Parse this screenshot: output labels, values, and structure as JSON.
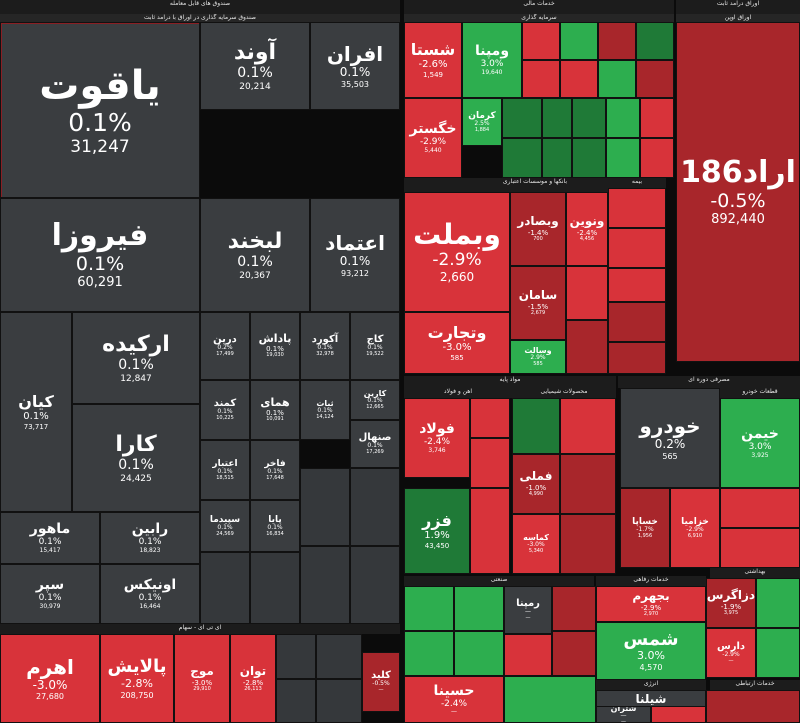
{
  "colors": {
    "neutral": "#3a3d40",
    "neutral_dark": "#35383b",
    "red": "#d8333a",
    "red_dark": "#a8262b",
    "green": "#2dae4f",
    "green_dark": "#1f7a37",
    "highlight_red": "#8a1f24"
  },
  "chart_data": {
    "type": "treemap",
    "sections": [
      {
        "key": "etf_trade",
        "label": "صندوق های قابل معامله",
        "sub": "صندوق سرمایه گذاری در اوراق با درآمد ثابت"
      },
      {
        "key": "fin",
        "label": "خدمات مالی",
        "sub": "سرمایه گذاری"
      },
      {
        "key": "fixed",
        "label": "اوراق درآمد ثابت",
        "sub": "اوراق اوپن"
      },
      {
        "key": "banks",
        "label": "بانکها و موسسات اعتباری"
      },
      {
        "key": "insurance",
        "label": "بیمه"
      },
      {
        "key": "basic_metals",
        "label": "مواد پایه"
      },
      {
        "key": "metals",
        "label": "آهن و فولاد"
      },
      {
        "key": "chem",
        "label": "محصولات شیمیایی"
      },
      {
        "key": "auto",
        "label": "مصرفی دوره ای"
      },
      {
        "key": "food",
        "label": "قطعات خودرو"
      },
      {
        "key": "industrial",
        "label": "صنعتی"
      },
      {
        "key": "tech",
        "label": "ای تی ای - سهام"
      },
      {
        "key": "utilities",
        "label": "خدمات رفاهی"
      },
      {
        "key": "health",
        "label": "بهداشتی"
      },
      {
        "key": "energy",
        "label": "انرژی"
      },
      {
        "key": "telecom",
        "label": "خدمات ارتباطی"
      }
    ],
    "tiles": [
      {
        "name": "یاقوت",
        "change": "0.1%",
        "value": "31,247"
      },
      {
        "name": "آوند",
        "change": "0.1%",
        "value": "20,214"
      },
      {
        "name": "افران",
        "change": "0.1%",
        "value": "35,503"
      },
      {
        "name": "فیروزا",
        "change": "0.1%",
        "value": "60,291"
      },
      {
        "name": "لبخند",
        "change": "0.1%",
        "value": "20,367"
      },
      {
        "name": "اعتماد",
        "change": "0.1%",
        "value": "93,212"
      },
      {
        "name": "ارکیده",
        "change": "0.1%",
        "value": "12,847"
      },
      {
        "name": "کیان",
        "change": "0.1%",
        "value": "73,717"
      },
      {
        "name": "کارا",
        "change": "0.1%",
        "value": "24,425"
      },
      {
        "name": "درین",
        "change": "0.2%",
        "value": "17,499"
      },
      {
        "name": "پاداش",
        "change": "0.1%",
        "value": "19,030"
      },
      {
        "name": "آکورد",
        "change": "0.1%",
        "value": "32,978"
      },
      {
        "name": "کاج",
        "change": "0.1%",
        "value": "19,522"
      },
      {
        "name": "کارین",
        "change": "0.1%",
        "value": "12,665"
      },
      {
        "name": "ثبات",
        "change": "0.1%",
        "value": "14,124"
      },
      {
        "name": "کمند",
        "change": "0.1%",
        "value": "10,225"
      },
      {
        "name": "همای",
        "change": "0.1%",
        "value": "10,091"
      },
      {
        "name": "صنهال",
        "change": "0.1%",
        "value": "17,269"
      },
      {
        "name": "ماهور",
        "change": "0.1%",
        "value": "15,417"
      },
      {
        "name": "رابین",
        "change": "0.1%",
        "value": "18,823"
      },
      {
        "name": "اعتبار",
        "change": "0.1%",
        "value": "18,515"
      },
      {
        "name": "فاخر",
        "change": "0.1%",
        "value": "17,648"
      },
      {
        "name": "سپر",
        "change": "0.1%",
        "value": "30,979"
      },
      {
        "name": "اونیکس",
        "change": "0.1%",
        "value": "16,464"
      },
      {
        "name": "سپیدما",
        "change": "0.1%",
        "value": "24,569"
      },
      {
        "name": "پایا",
        "change": "0.1%",
        "value": "16,834"
      },
      {
        "name": "شستا",
        "change": "-2.6%",
        "value": "1,549"
      },
      {
        "name": "ومپنا",
        "change": "3.0%",
        "value": "19,640"
      },
      {
        "name": "خگستر",
        "change": "-2.9%",
        "value": "5,440"
      },
      {
        "name": "کرمان",
        "change": "2.5%",
        "value": "1,884"
      },
      {
        "name": "اراد186",
        "change": "-0.5%",
        "value": "892,440"
      },
      {
        "name": "وبملت",
        "change": "-2.9%",
        "value": "2,660"
      },
      {
        "name": "وبصادر",
        "change": "-1.4%",
        "value": "700"
      },
      {
        "name": "ونوین",
        "change": "-2.4%",
        "value": "4,456"
      },
      {
        "name": "سامان",
        "change": "-1.5%",
        "value": "2,679"
      },
      {
        "name": "وتجارت",
        "change": "-3.0%",
        "value": "585"
      },
      {
        "name": "وسالت",
        "change": "2.9%",
        "value": "585"
      },
      {
        "name": "فولاد",
        "change": "-2.4%",
        "value": "3,746"
      },
      {
        "name": "فملی",
        "change": "-1.0%",
        "value": "4,990"
      },
      {
        "name": "فزر",
        "change": "1.9%",
        "value": "43,450"
      },
      {
        "name": "کماسه",
        "change": "-3.0%",
        "value": "5,340"
      },
      {
        "name": "خودرو",
        "change": "0.2%",
        "value": "565"
      },
      {
        "name": "خیمن",
        "change": "3.0%",
        "value": "3,925"
      },
      {
        "name": "خزامیا",
        "change": "-2.9%",
        "value": "6,910"
      },
      {
        "name": "خساپا",
        "change": "-1.7%",
        "value": "1,956"
      },
      {
        "name": "اهرم",
        "change": "-3.0%",
        "value": "27,680"
      },
      {
        "name": "پالایش",
        "change": "-2.8%",
        "value": "208,750"
      },
      {
        "name": "موج",
        "change": "-3.0%",
        "value": "29,910"
      },
      {
        "name": "توان",
        "change": "-2.8%",
        "value": "26,113"
      },
      {
        "name": "بجهرم",
        "change": "-2.9%",
        "value": "2,970"
      },
      {
        "name": "شمس",
        "change": "3.0%",
        "value": "4,570"
      },
      {
        "name": "دزاگرس",
        "change": "-1.9%",
        "value": "3,975"
      },
      {
        "name": "دارس",
        "change": "-2.9%",
        "value": "—"
      },
      {
        "name": "حسینا",
        "change": "-2.4%",
        "value": "—"
      },
      {
        "name": "رمپنا",
        "change": "—",
        "value": "—"
      },
      {
        "name": "کلید",
        "change": "-0.5%",
        "value": "—"
      },
      {
        "name": "شیلنا",
        "change": "—",
        "value": "—"
      },
      {
        "name": "شتران",
        "change": "—",
        "value": "—"
      }
    ]
  }
}
